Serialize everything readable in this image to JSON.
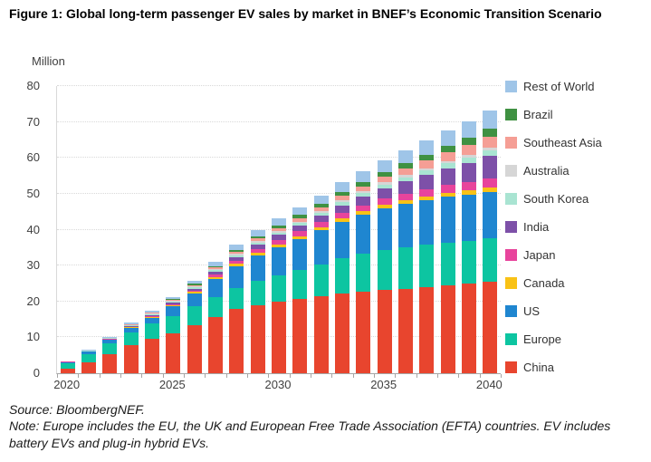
{
  "figure": {
    "title": "Figure 1: Global long-term passenger EV sales by market in BNEF’s Economic Transition Scenario"
  },
  "chart_data": {
    "type": "bar",
    "stacked": true,
    "title": "Global long-term passenger EV sales by market in BNEF's Economic Transition Scenario",
    "unit_label": "Million",
    "xlabel": "",
    "ylabel": "Million",
    "ylim": [
      0,
      80
    ],
    "ytick_step": 10,
    "grid": "horizontal-dotted",
    "legend_position": "right-vertical-top-is-last-series",
    "x": [
      2020,
      2021,
      2022,
      2023,
      2024,
      2025,
      2026,
      2027,
      2028,
      2029,
      2030,
      2031,
      2032,
      2033,
      2034,
      2035,
      2036,
      2037,
      2038,
      2039,
      2040
    ],
    "x_tick_labels": [
      "2020",
      "2025",
      "2030",
      "2035",
      "2040"
    ],
    "x_tick_label_positions": [
      0,
      5,
      10,
      15,
      20
    ],
    "series": [
      {
        "name": "China",
        "color": "#e8452e",
        "values": [
          1.2,
          3.0,
          5.3,
          7.9,
          9.6,
          11.2,
          13.3,
          15.7,
          17.8,
          19.0,
          19.9,
          20.6,
          21.4,
          22.1,
          22.7,
          23.2,
          23.6,
          24.1,
          24.6,
          25.0,
          25.5
        ]
      },
      {
        "name": "Europe",
        "color": "#0dc5a1",
        "values": [
          1.6,
          2.4,
          3.0,
          3.5,
          4.2,
          4.8,
          5.4,
          5.6,
          5.9,
          6.8,
          7.4,
          8.2,
          9.0,
          9.9,
          10.6,
          11.2,
          11.5,
          11.7,
          11.8,
          11.9,
          12.0
        ]
      },
      {
        "name": "US",
        "color": "#1f86d0",
        "values": [
          0.3,
          0.6,
          1.0,
          1.3,
          1.7,
          2.6,
          3.5,
          5.0,
          6.2,
          7.1,
          7.8,
          8.6,
          9.4,
          10.2,
          10.9,
          11.6,
          12.0,
          12.4,
          12.7,
          12.9,
          13.0
        ]
      },
      {
        "name": "Canada",
        "color": "#f9c216",
        "values": [
          0.05,
          0.08,
          0.1,
          0.15,
          0.2,
          0.3,
          0.4,
          0.5,
          0.6,
          0.65,
          0.7,
          0.8,
          0.85,
          0.9,
          1.0,
          1.0,
          1.1,
          1.1,
          1.2,
          1.2,
          1.3
        ]
      },
      {
        "name": "Japan",
        "color": "#e8449c",
        "values": [
          0.03,
          0.05,
          0.1,
          0.15,
          0.2,
          0.3,
          0.4,
          0.6,
          0.8,
          1.0,
          1.3,
          1.4,
          1.4,
          1.5,
          1.6,
          1.7,
          1.9,
          2.0,
          2.2,
          2.3,
          2.5
        ]
      },
      {
        "name": "India",
        "color": "#7d50a8",
        "values": [
          0.02,
          0.05,
          0.1,
          0.2,
          0.3,
          0.4,
          0.6,
          0.8,
          1.0,
          1.2,
          1.4,
          1.5,
          1.8,
          2.1,
          2.4,
          2.8,
          3.3,
          3.9,
          4.6,
          5.3,
          6.2
        ]
      },
      {
        "name": "South Korea",
        "color": "#a9e4d2",
        "values": [
          0.05,
          0.1,
          0.15,
          0.2,
          0.3,
          0.35,
          0.4,
          0.5,
          0.6,
          0.65,
          0.7,
          0.75,
          0.8,
          0.9,
          1.0,
          1.1,
          1.2,
          1.3,
          1.4,
          1.5,
          1.6
        ]
      },
      {
        "name": "Australia",
        "color": "#d6d6d6",
        "values": [
          0.02,
          0.03,
          0.05,
          0.1,
          0.1,
          0.15,
          0.2,
          0.25,
          0.3,
          0.35,
          0.4,
          0.4,
          0.45,
          0.5,
          0.5,
          0.55,
          0.6,
          0.6,
          0.65,
          0.7,
          0.7
        ]
      },
      {
        "name": "Southeast Asia",
        "color": "#f59e95",
        "values": [
          0.02,
          0.05,
          0.1,
          0.15,
          0.2,
          0.3,
          0.4,
          0.5,
          0.65,
          0.8,
          0.85,
          1.0,
          1.1,
          1.3,
          1.4,
          1.6,
          1.8,
          2.1,
          2.4,
          2.7,
          3.0
        ]
      },
      {
        "name": "Brazil",
        "color": "#3f9142",
        "values": [
          0.02,
          0.03,
          0.05,
          0.1,
          0.15,
          0.2,
          0.3,
          0.4,
          0.5,
          0.6,
          0.8,
          0.9,
          1.0,
          1.1,
          1.2,
          1.3,
          1.5,
          1.7,
          1.9,
          2.1,
          2.3
        ]
      },
      {
        "name": "Rest of World",
        "color": "#9fc5e8",
        "values": [
          0.1,
          0.15,
          0.25,
          0.35,
          0.5,
          0.7,
          0.9,
          1.2,
          1.5,
          1.7,
          1.9,
          2.1,
          2.4,
          2.7,
          3.0,
          3.4,
          3.7,
          4.0,
          4.3,
          4.7,
          5.0
        ]
      }
    ]
  },
  "footer": {
    "source": "Source: BloombergNEF.",
    "note": "Note: Europe includes the EU, the UK and European Free Trade Association (EFTA) countries. EV includes battery EVs and plug-in hybrid EVs."
  }
}
